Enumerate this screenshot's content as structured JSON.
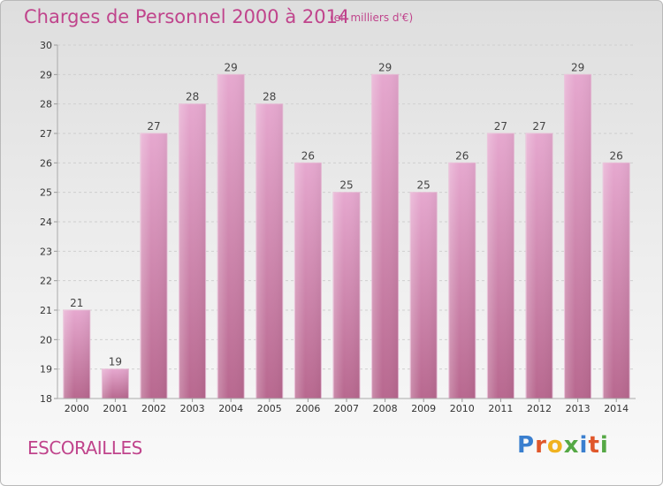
{
  "chart_data": {
    "type": "bar",
    "title": "Charges de Personnel 2000 à 2014",
    "subtitle": "(en milliers d'€)",
    "categories": [
      "2000",
      "2001",
      "2002",
      "2003",
      "2004",
      "2005",
      "2006",
      "2007",
      "2008",
      "2009",
      "2010",
      "2011",
      "2012",
      "2013",
      "2014"
    ],
    "values": [
      21,
      19,
      27,
      28,
      29,
      28,
      26,
      25,
      29,
      25,
      26,
      27,
      27,
      29,
      26
    ],
    "ylim": [
      18,
      30
    ],
    "yticks": [
      18,
      19,
      20,
      21,
      22,
      23,
      24,
      25,
      26,
      27,
      28,
      29,
      30
    ],
    "grid": true,
    "bar_color": "#d98fb9",
    "xlabel": "",
    "ylabel": ""
  },
  "footer": {
    "commune": "ESCORAILLES",
    "logo_letters": [
      {
        "ch": "P",
        "color": "#3a7fcf"
      },
      {
        "ch": "r",
        "color": "#e0572b"
      },
      {
        "ch": "o",
        "color": "#f0b21f"
      },
      {
        "ch": "x",
        "color": "#55a845"
      },
      {
        "ch": "i",
        "color": "#3a7fcf"
      },
      {
        "ch": "t",
        "color": "#e0572b"
      },
      {
        "ch": "i",
        "color": "#55a845"
      }
    ]
  }
}
